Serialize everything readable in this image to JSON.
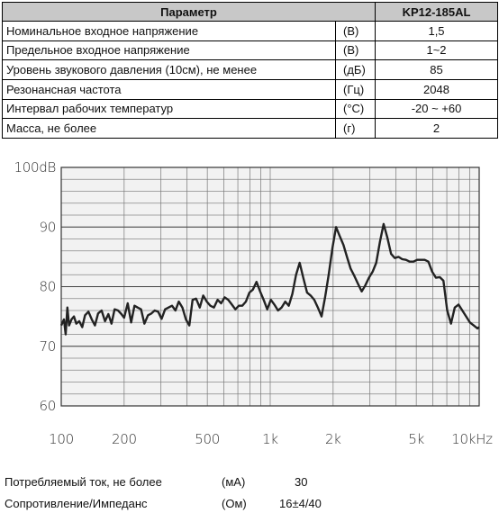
{
  "table": {
    "header": {
      "param": "Параметр",
      "model": "KP12-185AL"
    },
    "rows": [
      {
        "name": "Номинальное входное напряжение",
        "unit": "(В)",
        "value": "1,5"
      },
      {
        "name": "Предельное входное напряжение",
        "unit": "(В)",
        "value": "1~2"
      },
      {
        "name": "Уровень звукового давления (10см), не менее",
        "unit": "(дБ)",
        "value": "85"
      },
      {
        "name": "Резонансная частота",
        "unit": "(Гц)",
        "value": "2048"
      },
      {
        "name": "Интервал рабочих температур",
        "unit": "(°С)",
        "value": "-20 ~ +60"
      },
      {
        "name": "Масса, не более",
        "unit": "(г)",
        "value": "2"
      }
    ]
  },
  "chart_data": {
    "type": "line",
    "x_scale": "log",
    "grid": true,
    "xlim": [
      100,
      10000
    ],
    "ylim": [
      60,
      100
    ],
    "x_ticks": [
      {
        "value": 100,
        "label": "100"
      },
      {
        "value": 200,
        "label": "200"
      },
      {
        "value": 500,
        "label": "500"
      },
      {
        "value": 1000,
        "label": "1k"
      },
      {
        "value": 2000,
        "label": "2k"
      },
      {
        "value": 5000,
        "label": "5k"
      },
      {
        "value": 10000,
        "label": "10kHz"
      }
    ],
    "y_ticks": [
      {
        "value": 100,
        "label": "100dB"
      },
      {
        "value": 90,
        "label": "90"
      },
      {
        "value": 80,
        "label": "80"
      },
      {
        "value": 70,
        "label": "70"
      },
      {
        "value": 60,
        "label": "60"
      }
    ],
    "series": [
      {
        "color": "#222222",
        "x": [
          100,
          103,
          105,
          107,
          109,
          112,
          115,
          118,
          122,
          126,
          130,
          135,
          140,
          145,
          150,
          156,
          162,
          168,
          174,
          180,
          187,
          194,
          200,
          208,
          216,
          224,
          232,
          241,
          250,
          260,
          270,
          280,
          291,
          302,
          314,
          326,
          339,
          352,
          365,
          380,
          395,
          410,
          425,
          442,
          460,
          478,
          497,
          517,
          538,
          560,
          582,
          605,
          630,
          655,
          681,
          708,
          735,
          765,
          795,
          826,
          860,
          895,
          930,
          968,
          1007,
          1047,
          1090,
          1133,
          1180,
          1227,
          1277,
          1330,
          1384,
          1440,
          1500,
          1561,
          1624,
          1690,
          1760,
          1830,
          1905,
          1985,
          2065,
          2150,
          2240,
          2330,
          2427,
          2527,
          2630,
          2740,
          2850,
          2967,
          3090,
          3217,
          3350,
          3490,
          3636,
          3787,
          3946,
          4111,
          4283,
          4463,
          4650,
          4846,
          5050,
          5262,
          5484,
          5716,
          5957,
          6209,
          6472,
          6746,
          7032,
          7330,
          7641,
          7966,
          8305,
          8658,
          9028,
          9413,
          9815,
          10000
        ],
        "y": [
          73.5,
          74.5,
          72.0,
          76.5,
          73.5,
          74.5,
          75.0,
          73.8,
          74.2,
          73.2,
          75.2,
          75.8,
          74.5,
          73.5,
          75.5,
          76.0,
          74.2,
          75.4,
          73.8,
          76.2,
          76.0,
          75.4,
          74.8,
          77.2,
          74.0,
          76.8,
          76.5,
          76.2,
          73.8,
          75.2,
          75.5,
          76.0,
          75.8,
          74.6,
          76.2,
          76.5,
          76.8,
          76.0,
          77.5,
          76.5,
          74.5,
          73.5,
          77.8,
          78.0,
          76.5,
          78.5,
          77.5,
          76.8,
          76.5,
          77.8,
          77.2,
          78.2,
          77.8,
          77.0,
          76.2,
          76.8,
          76.8,
          77.5,
          79.0,
          79.5,
          80.8,
          79.2,
          77.8,
          76.2,
          77.8,
          77.0,
          76.0,
          76.5,
          77.5,
          76.8,
          78.8,
          82.0,
          84.0,
          81.5,
          79.0,
          78.5,
          77.8,
          76.5,
          75.0,
          78.2,
          82.0,
          86.5,
          90.0,
          88.5,
          87.0,
          85.0,
          83.0,
          81.8,
          80.5,
          79.2,
          80.2,
          81.5,
          82.5,
          84.0,
          87.5,
          90.5,
          88.2,
          85.5,
          84.8,
          85.0,
          84.6,
          84.5,
          84.2,
          84.2,
          84.5,
          84.5,
          84.5,
          84.2,
          82.5,
          81.5,
          81.6,
          81.0,
          76.0,
          73.8,
          76.5,
          77.0,
          76.0,
          75.0,
          74.0,
          73.5,
          73.0,
          73.2
        ]
      }
    ]
  },
  "footer": [
    {
      "label": "Потребляемый ток, не более",
      "unit": "(мА)",
      "value": "30"
    },
    {
      "label": "Сопротивление/Импеданс",
      "unit": "(Ом)",
      "value": "16±4/40"
    }
  ]
}
